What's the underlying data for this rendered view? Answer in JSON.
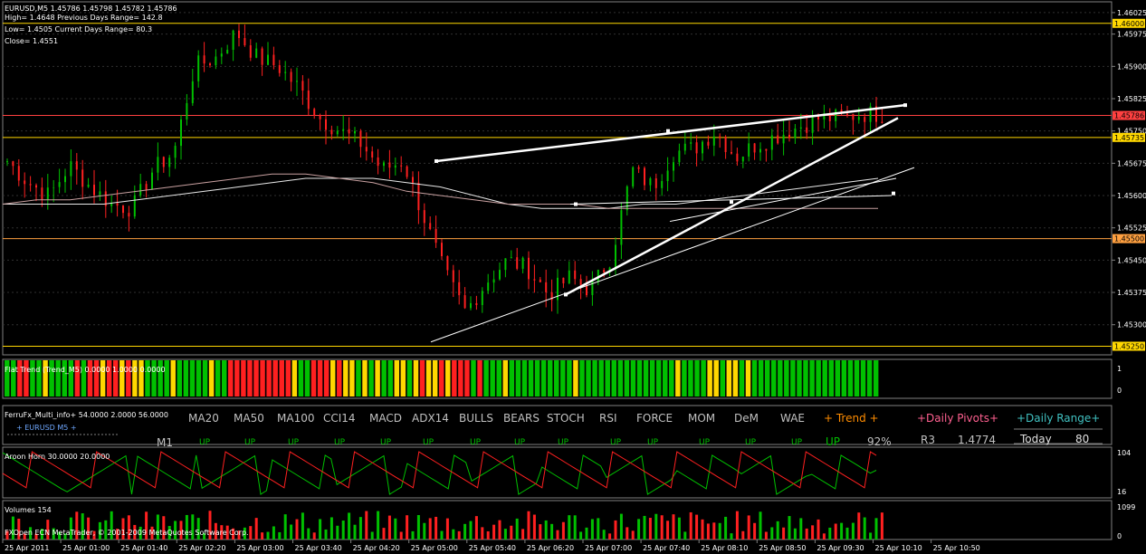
{
  "chart_data": [
    {
      "type": "candlestick",
      "symbol_line": "EURUSD,M5  1.45786 1.45798 1.45782 1.45786",
      "info_lines": [
        "High= 1.4648    Previous Days Range= 142.8",
        "Low= 1.4505    Current Days Range= 80.3",
        "Close= 1.4551"
      ],
      "y_ticks": [
        "1.46025",
        "1.45975",
        "1.45900",
        "1.45825",
        "1.45750",
        "1.45675",
        "1.45600",
        "1.45525",
        "1.45450",
        "1.45375",
        "1.45300"
      ],
      "ylim": [
        1.4523,
        1.4605
      ],
      "level_lines": [
        {
          "label": "1.46000",
          "price": 1.46,
          "color": "#ffd700"
        },
        {
          "label": "1.45786",
          "price": 1.45786,
          "color": "#ff4040"
        },
        {
          "label": "1.45735",
          "price": 1.45735,
          "color": "#ffd700"
        },
        {
          "label": "1.45500",
          "price": 1.455,
          "color": "#ffa040"
        },
        {
          "label": "1.45250",
          "price": 1.4525,
          "color": "#ffd700"
        }
      ],
      "moving_averages": [
        {
          "color": "#e8e8e8",
          "values": [
            1.4558,
            1.4558,
            1.4558,
            1.4558,
            1.4559,
            1.456,
            1.4561,
            1.4562,
            1.4563,
            1.4564,
            1.4564,
            1.4564,
            1.4563,
            1.4562,
            1.456,
            1.4558,
            1.4557,
            1.4557,
            1.4557,
            1.4558,
            1.4558,
            1.4559,
            1.456,
            1.4561,
            1.4562,
            1.4563,
            1.4564
          ]
        },
        {
          "color": "#c8a0a0",
          "values": [
            1.4558,
            1.4559,
            1.4559,
            1.456,
            1.4561,
            1.4562,
            1.4563,
            1.4564,
            1.4565,
            1.4565,
            1.4564,
            1.4563,
            1.4561,
            1.456,
            1.4559,
            1.4558,
            1.4558,
            1.4558,
            1.4557,
            1.4557,
            1.4557,
            1.4557,
            1.4557,
            1.4557,
            1.4557,
            1.4557,
            1.4557
          ]
        }
      ],
      "closes": [
        1.4568,
        1.4563,
        1.456,
        1.4567,
        1.4562,
        1.4558,
        1.4557,
        1.4566,
        1.457,
        1.459,
        1.4592,
        1.4598,
        1.4592,
        1.459,
        1.4585,
        1.4578,
        1.4575,
        1.4572,
        1.4566,
        1.4568,
        1.4555,
        1.4542,
        1.4533,
        1.454,
        1.4545,
        1.4543,
        1.4537,
        1.4541,
        1.4538,
        1.4546,
        1.4566,
        1.4562,
        1.457,
        1.4571,
        1.4575,
        1.4569,
        1.4572,
        1.4574,
        1.4576,
        1.4578,
        1.4578,
        1.4579,
        1.4579
      ]
    },
    {
      "type": "bar",
      "title": "Flat Trend (Trend_M5) 0.0000 1.0000 0.0000",
      "y_ticks": [
        "1",
        "0"
      ],
      "colors": [
        "#ff2020",
        "#ffd700",
        "#00c000"
      ],
      "pattern": "GGRRGGYGGGGRGRRYRRYRYYGGGGYGGGGGYGGRRRRRRRRRRYGGRRRYRYYGYGYGGYYGYRYYRYRRRGRGGGYGGGGGGGGGGYGGGGGGGGGGGGGGGYGGGGYYGYYGYGGGGGGGGGGGGGGGGGGGG"
    },
    {
      "type": "table",
      "title": "FerruFx_Multi_info+ 54.0000 2.0000 56.0000",
      "subtitle": "+ EURUSD  M5  +",
      "timeframe": "M1",
      "columns": [
        "MA20",
        "MA50",
        "MA100",
        "CCI14",
        "MACD",
        "ADX14",
        "BULLS",
        "BEARS",
        "STOCH",
        "RSI",
        "FORCE",
        "MOM",
        "DeM",
        "WAE"
      ],
      "m1_row": [
        "UP",
        "UP",
        "UP",
        "UP",
        "UP",
        "UP",
        "UP",
        "UP",
        "UP",
        "UP",
        "UP",
        "UP",
        "UP",
        "UP"
      ],
      "trend_header": "+  Trend  +",
      "trend_value": "UP",
      "trend_pct": "92%",
      "pivots_header": "+Daily Pivots+",
      "pivot_name": "R3",
      "pivot_value": "1.4774",
      "range_header": "+Daily Range+",
      "range_label": "Today",
      "range_value": "80"
    },
    {
      "type": "line",
      "title": "Aroon Horn 30.0000 20.0000",
      "y_ticks": [
        "104",
        "16"
      ],
      "ylim": [
        16,
        104
      ]
    },
    {
      "type": "bar",
      "title": "Volumes 154",
      "y_ticks": [
        "1099",
        "0"
      ]
    }
  ],
  "x_ticks": [
    "25 Apr 2011",
    "25 Apr 01:00",
    "25 Apr 01:40",
    "25 Apr 02:20",
    "25 Apr 03:00",
    "25 Apr 03:40",
    "25 Apr 04:20",
    "25 Apr 05:00",
    "25 Apr 05:40",
    "25 Apr 06:20",
    "25 Apr 07:00",
    "25 Apr 07:40",
    "25 Apr 08:10",
    "25 Apr 08:50",
    "25 Apr 09:30",
    "25 Apr 10:10",
    "25 Apr 10:50"
  ],
  "footer": "FXOpen ECN MetaTrader, © 2001-2009 MetaQuotes Software Corp.",
  "colors": {
    "bull": "#00c000",
    "bear": "#ff2020",
    "grid": "#303030",
    "axis": "#808080"
  }
}
